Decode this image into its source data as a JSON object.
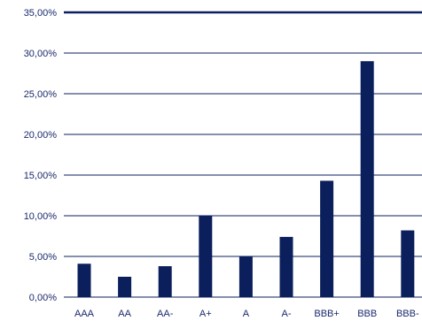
{
  "chart_data": {
    "type": "bar",
    "title": "",
    "xlabel": "",
    "ylabel": "",
    "categories": [
      "AAA",
      "AA",
      "AA-",
      "A+",
      "A",
      "A-",
      "BBB+",
      "BBB",
      "BBB-"
    ],
    "values": [
      4.1,
      2.5,
      3.8,
      10.0,
      5.0,
      7.4,
      14.3,
      29.0,
      8.2
    ],
    "ylim": [
      0,
      35
    ],
    "yticks": [
      0,
      5,
      10,
      15,
      20,
      25,
      30,
      35
    ],
    "ytick_labels": [
      "0,00%",
      "5,00%",
      "10,00%",
      "15,00%",
      "20,00%",
      "25,00%",
      "30,00%",
      "35,00%"
    ],
    "grid": true,
    "legend": "none",
    "colors": {
      "bar": "#0b1f5c",
      "grid": "#0b1f5c",
      "text": "#1a2a6c"
    }
  }
}
